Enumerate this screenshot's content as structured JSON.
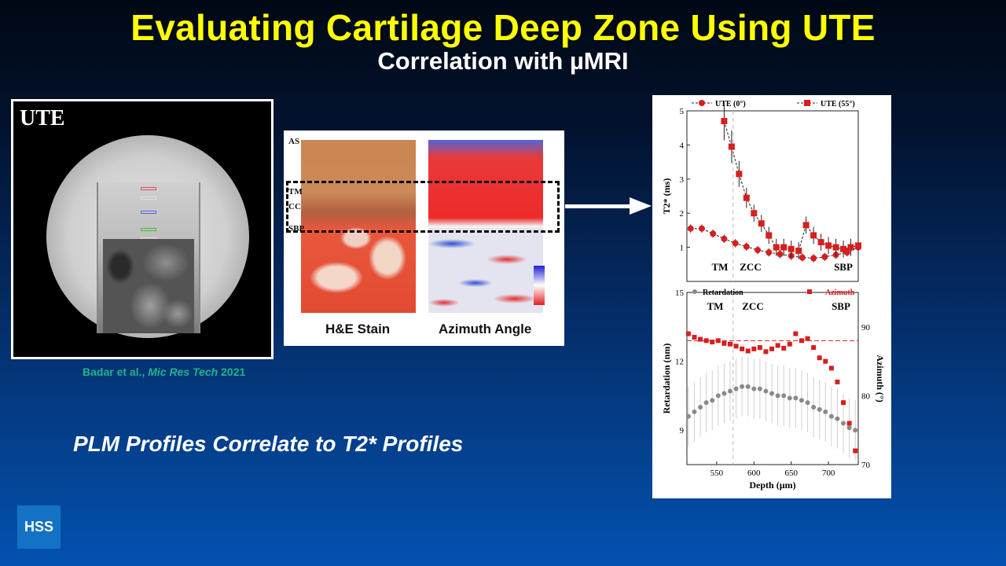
{
  "slide": {
    "title": "Evaluating Cartilage Deep Zone Using UTE",
    "subtitle": "Correlation with µMRI",
    "statement": "PLM Profiles Correlate to T2* Profiles",
    "logo": "HSS",
    "colors": {
      "title": "#ffff00",
      "citation": "#1fb58a",
      "logo_bg": "#1372c4"
    }
  },
  "ute_image": {
    "label": "UTE",
    "roi_colors": [
      "#e05050",
      "#e0e0e0",
      "#4a6ee0",
      "#3cc03c",
      "#e0e0e0"
    ]
  },
  "citation": {
    "authors": "Badar et al.,",
    "journal": "Mic Res Tech",
    "year": "2021"
  },
  "stain_panel": {
    "labels": {
      "as": "AS",
      "tm": "TM",
      "cc": "CC",
      "sbp": "SBP"
    },
    "captions": {
      "he": "H&E Stain",
      "azimuth": "Azimuth Angle"
    }
  },
  "chart_data": [
    {
      "type": "line",
      "xlim": [
        510,
        740
      ],
      "ylim": [
        0,
        5
      ],
      "ylabel": "T2* (ms)",
      "yticks": [
        1,
        2,
        3,
        4,
        5
      ],
      "zone_labels": [
        "TM",
        "ZCC",
        "SBP"
      ],
      "series": [
        {
          "name": "UTE (0°)",
          "color": "#d81e1e",
          "marker": "circle",
          "x": [
            515,
            530,
            545,
            560,
            575,
            590,
            605,
            620,
            635,
            650,
            665,
            680,
            695,
            710,
            725,
            740
          ],
          "y": [
            1.55,
            1.55,
            1.4,
            1.25,
            1.12,
            1.02,
            0.92,
            0.85,
            0.8,
            0.75,
            0.7,
            0.68,
            0.72,
            0.78,
            0.85,
            1.0
          ]
        },
        {
          "name": "UTE (55°)",
          "color": "#d81e1e",
          "marker": "square",
          "x": [
            560,
            570,
            580,
            590,
            600,
            610,
            620,
            630,
            640,
            650,
            660,
            670,
            680,
            690,
            700,
            710,
            720,
            730,
            740
          ],
          "y": [
            4.7,
            3.95,
            3.15,
            2.45,
            2.0,
            1.7,
            1.35,
            1.0,
            1.0,
            0.95,
            0.9,
            1.65,
            1.35,
            1.15,
            1.05,
            1.0,
            0.95,
            1.0,
            1.05
          ]
        }
      ]
    },
    {
      "type": "scatter",
      "xlim": [
        510,
        740
      ],
      "xticks": [
        550,
        600,
        650,
        700
      ],
      "xlabel": "Depth (µm)",
      "ylabel": "Retardation (nm)",
      "ylim": [
        7.5,
        15
      ],
      "yticks": [
        9,
        12,
        15
      ],
      "y2label": "Azimuth (°)",
      "y2lim": [
        70,
        95
      ],
      "y2ticks": [
        70,
        80,
        90
      ],
      "zone_labels": [
        "TM",
        "ZCC",
        "SBP"
      ],
      "series": [
        {
          "name": "Retardation",
          "color": "#8a8a8a",
          "axis": "left",
          "x": [
            512,
            520,
            528,
            536,
            544,
            552,
            560,
            568,
            576,
            584,
            592,
            600,
            608,
            616,
            624,
            632,
            640,
            648,
            656,
            664,
            672,
            680,
            688,
            696,
            704,
            712,
            720,
            728,
            736
          ],
          "y": [
            9.6,
            9.8,
            10.0,
            10.2,
            10.3,
            10.5,
            10.6,
            10.7,
            10.8,
            10.9,
            10.9,
            10.8,
            10.8,
            10.7,
            10.6,
            10.5,
            10.5,
            10.4,
            10.4,
            10.3,
            10.2,
            10.0,
            9.9,
            9.8,
            9.6,
            9.5,
            9.3,
            9.1,
            9.0
          ]
        },
        {
          "name": "Azimuth",
          "color": "#d81e1e",
          "axis": "right",
          "reference": 88,
          "x": [
            512,
            520,
            528,
            536,
            544,
            552,
            560,
            568,
            576,
            584,
            592,
            600,
            608,
            616,
            624,
            632,
            640,
            648,
            656,
            664,
            672,
            680,
            688,
            696,
            704,
            712,
            720,
            728,
            736
          ],
          "y": [
            89,
            88.5,
            88.2,
            88.0,
            87.8,
            88.0,
            87.6,
            87.5,
            87.2,
            86.8,
            86.5,
            86.8,
            87.0,
            86.4,
            86.8,
            87.3,
            86.9,
            87.5,
            89.0,
            88.0,
            88.3,
            87.0,
            85.5,
            85.0,
            84.0,
            82.0,
            79.0,
            76.0,
            72.0
          ]
        }
      ]
    }
  ]
}
